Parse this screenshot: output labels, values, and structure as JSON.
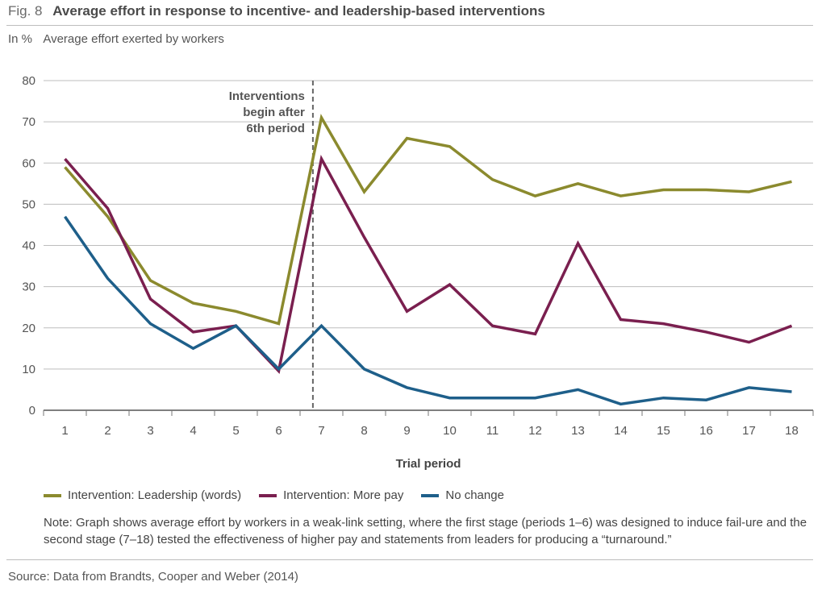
{
  "figure": {
    "number": "Fig. 8",
    "title": "Average effort in response to incentive- and leadership-based interventions",
    "unit": "In %",
    "subtitle": "Average effort exerted by workers",
    "annotation_lines": [
      "Interventions",
      "begin after",
      "6th period"
    ],
    "note": "Note: Graph shows average effort by workers in a weak-link setting, where the first stage (periods 1–6) was designed to induce fail-ure and the second stage (7–18) tested the effectiveness of higher pay and statements from leaders for producing a “turnaround.”",
    "source": "Source: Data from Brandts, Cooper and Weber (2014)"
  },
  "chart_data": {
    "type": "line",
    "title": "Average effort in response to incentive- and leadership-based interventions",
    "xlabel": "Trial period",
    "ylabel": "Average effort exerted by workers",
    "x": [
      1,
      2,
      3,
      4,
      5,
      6,
      7,
      8,
      9,
      10,
      11,
      12,
      13,
      14,
      15,
      16,
      17,
      18
    ],
    "yticks": [
      0,
      10,
      20,
      30,
      40,
      50,
      60,
      70,
      80
    ],
    "ylim": [
      0,
      80
    ],
    "grid": "horizontal",
    "legend_position": "bottom",
    "intervention_after_period": 6.8,
    "series": [
      {
        "name": "Intervention: Leadership (words)",
        "color": "#8b8a2e",
        "values": [
          59,
          47,
          31.5,
          26,
          24,
          21,
          71,
          53,
          66,
          64,
          56,
          52,
          55,
          52,
          53.5,
          53.5,
          53,
          55.5
        ]
      },
      {
        "name": "Intervention: More pay",
        "color": "#7a1f4f",
        "values": [
          61,
          49,
          27,
          19,
          20.5,
          9.5,
          61,
          42,
          24,
          30.5,
          20.5,
          18.5,
          40.5,
          22,
          21,
          19,
          16.5,
          20.5
        ]
      },
      {
        "name": "No change",
        "color": "#1e5f8a",
        "values": [
          47,
          32,
          21,
          15,
          20.5,
          10,
          20.5,
          10,
          5.5,
          3,
          3,
          3,
          5,
          1.5,
          3,
          2.5,
          5.5,
          4.5
        ]
      }
    ]
  }
}
